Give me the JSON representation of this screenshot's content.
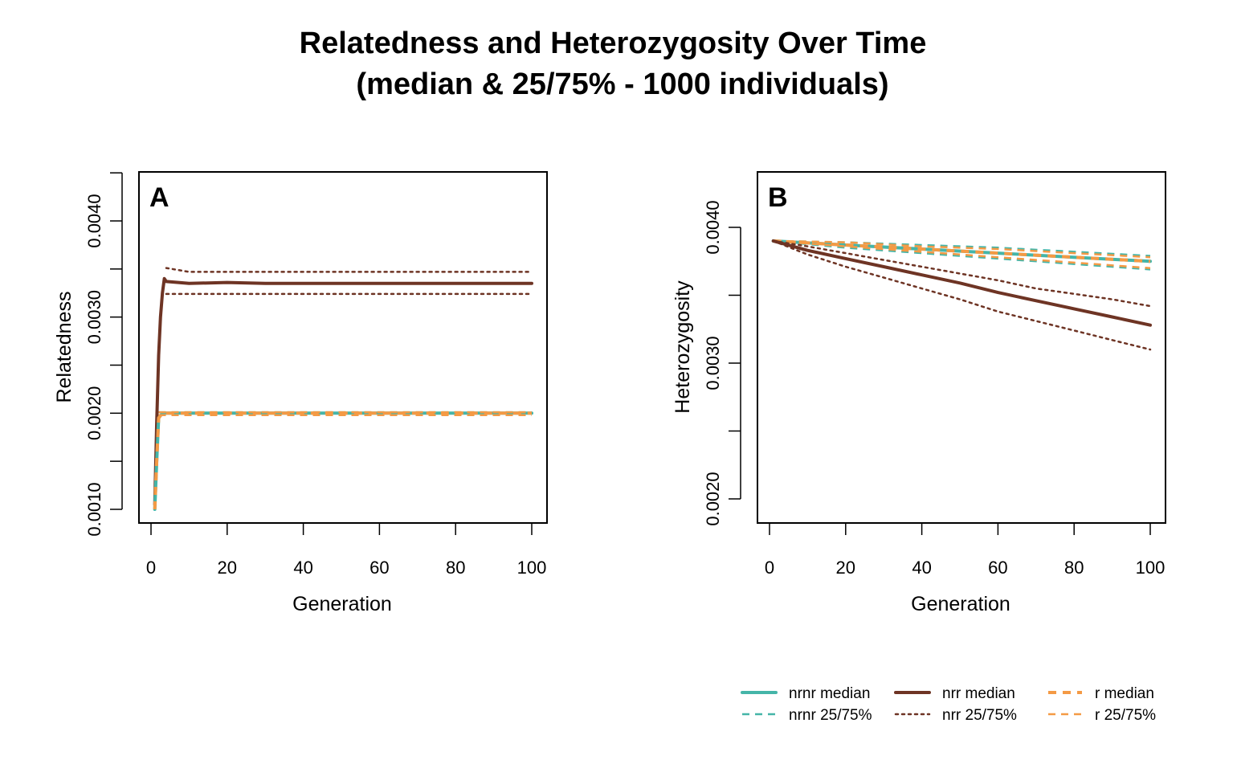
{
  "title_line1": "Relatedness and Heterozygosity Over Time",
  "title_line2": "(median & 25/75% - 1000 individuals)",
  "colors": {
    "nrnr": "#45B5A8",
    "nrr": "#6E3424",
    "r": "#F49A45"
  },
  "legend": [
    {
      "label": "nrnr median",
      "color_key": "nrnr",
      "style": "solid"
    },
    {
      "label": "nrnr 25/75%",
      "color_key": "nrnr",
      "style": "dashed"
    },
    {
      "label": "nrr median",
      "color_key": "nrr",
      "style": "solid"
    },
    {
      "label": "nrr 25/75%",
      "color_key": "nrr",
      "style": "dotted"
    },
    {
      "label": "r median",
      "color_key": "r",
      "style": "dashed-thick"
    },
    {
      "label": "r 25/75%",
      "color_key": "r",
      "style": "dashed"
    }
  ],
  "chart_data": [
    {
      "type": "line",
      "panel": "A",
      "xlabel": "Generation",
      "ylabel": "Relatedness",
      "xlim": [
        0,
        100
      ],
      "ylim": [
        0.0009,
        0.0045
      ],
      "xticks": [
        "0",
        "20",
        "40",
        "60",
        "80",
        "100"
      ],
      "yticks": [
        "0.0010",
        "0.0020",
        "0.0030",
        "0.0040"
      ],
      "series": [
        {
          "name": "nrr median",
          "color_key": "nrr",
          "style": "solid",
          "x": [
            1,
            1.5,
            2,
            2.5,
            3,
            3.5,
            4,
            10,
            20,
            30,
            40,
            50,
            60,
            70,
            80,
            90,
            100
          ],
          "y": [
            0.00105,
            0.0019,
            0.0026,
            0.003,
            0.00325,
            0.0034,
            0.00337,
            0.00335,
            0.00336,
            0.00335,
            0.00335,
            0.00335,
            0.00335,
            0.00335,
            0.00335,
            0.00335,
            0.00335
          ]
        },
        {
          "name": "nrr 25/75%",
          "color_key": "nrr",
          "style": "dotted",
          "x": [
            4,
            10,
            20,
            30,
            40,
            50,
            60,
            70,
            80,
            90,
            100
          ],
          "y": [
            0.00351,
            0.00347,
            0.00347,
            0.00347,
            0.00347,
            0.00347,
            0.00347,
            0.00347,
            0.00347,
            0.00347,
            0.00347
          ]
        },
        {
          "name": "nrr 25/75%",
          "color_key": "nrr",
          "style": "dotted",
          "x": [
            4,
            10,
            20,
            30,
            40,
            50,
            60,
            70,
            80,
            90,
            100
          ],
          "y": [
            0.00324,
            0.00324,
            0.00324,
            0.00324,
            0.00324,
            0.00324,
            0.00324,
            0.00324,
            0.00324,
            0.00324,
            0.00324
          ]
        },
        {
          "name": "nrnr median",
          "color_key": "nrnr",
          "style": "solid",
          "x": [
            1,
            1.5,
            2,
            3,
            10,
            20,
            30,
            40,
            50,
            60,
            70,
            80,
            90,
            100
          ],
          "y": [
            0.001,
            0.0015,
            0.00195,
            0.002,
            0.002,
            0.002,
            0.002,
            0.002,
            0.002,
            0.002,
            0.002,
            0.002,
            0.002,
            0.002
          ]
        },
        {
          "name": "nrnr 25/75%",
          "color_key": "nrnr",
          "style": "dashed",
          "x": [
            2,
            10,
            20,
            30,
            40,
            50,
            60,
            70,
            80,
            90,
            100
          ],
          "y": [
            0.00201,
            0.00201,
            0.00201,
            0.00201,
            0.00201,
            0.00201,
            0.00201,
            0.00201,
            0.00201,
            0.00201,
            0.00201
          ]
        },
        {
          "name": "nrnr 25/75%",
          "color_key": "nrnr",
          "style": "dashed",
          "x": [
            2,
            10,
            20,
            30,
            40,
            50,
            60,
            70,
            80,
            90,
            100
          ],
          "y": [
            0.00198,
            0.00198,
            0.00198,
            0.00198,
            0.00198,
            0.00198,
            0.00198,
            0.00198,
            0.00198,
            0.00198,
            0.00198
          ]
        },
        {
          "name": "r median",
          "color_key": "r",
          "style": "dashed-thick",
          "x": [
            1,
            1.5,
            2,
            3,
            10,
            20,
            30,
            40,
            50,
            60,
            70,
            80,
            90,
            100
          ],
          "y": [
            0.001,
            0.0015,
            0.00195,
            0.002,
            0.002,
            0.002,
            0.002,
            0.002,
            0.002,
            0.002,
            0.002,
            0.002,
            0.002,
            0.002
          ]
        },
        {
          "name": "r 25/75%",
          "color_key": "r",
          "style": "dashed",
          "x": [
            2,
            10,
            20,
            30,
            40,
            50,
            60,
            70,
            80,
            90,
            100
          ],
          "y": [
            0.00201,
            0.00201,
            0.00201,
            0.00201,
            0.00201,
            0.00201,
            0.00201,
            0.00201,
            0.00201,
            0.00201,
            0.00201
          ]
        },
        {
          "name": "r 25/75%",
          "color_key": "r",
          "style": "dashed",
          "x": [
            2,
            10,
            20,
            30,
            40,
            50,
            60,
            70,
            80,
            90,
            100
          ],
          "y": [
            0.00198,
            0.00198,
            0.00198,
            0.00198,
            0.00198,
            0.00198,
            0.00198,
            0.00198,
            0.00198,
            0.00198,
            0.00198
          ]
        }
      ]
    },
    {
      "type": "line",
      "panel": "B",
      "xlabel": "Generation",
      "ylabel": "Heterozygosity",
      "xlim": [
        0,
        100
      ],
      "ylim": [
        0.0018,
        0.0044
      ],
      "xticks": [
        "0",
        "20",
        "40",
        "60",
        "80",
        "100"
      ],
      "yticks": [
        "0.0020",
        "0.0030",
        "0.0040"
      ],
      "series": [
        {
          "name": "nrnr median",
          "color_key": "nrnr",
          "style": "solid",
          "x": [
            1,
            20,
            40,
            60,
            80,
            100
          ],
          "y": [
            0.0039,
            0.00387,
            0.00384,
            0.00381,
            0.00378,
            0.00375
          ]
        },
        {
          "name": "nrnr 25/75%",
          "color_key": "nrnr",
          "style": "dashed",
          "x": [
            1,
            20,
            40,
            60,
            80,
            100
          ],
          "y": [
            0.0039,
            0.00389,
            0.00387,
            0.00385,
            0.00382,
            0.00379
          ]
        },
        {
          "name": "nrnr 25/75%",
          "color_key": "nrnr",
          "style": "dashed",
          "x": [
            1,
            20,
            40,
            60,
            80,
            100
          ],
          "y": [
            0.0039,
            0.00385,
            0.00381,
            0.00377,
            0.00373,
            0.00369
          ]
        },
        {
          "name": "r median",
          "color_key": "r",
          "style": "dashed-thick",
          "x": [
            1,
            20,
            40,
            60,
            80,
            100
          ],
          "y": [
            0.0039,
            0.00387,
            0.00384,
            0.00381,
            0.00378,
            0.00375
          ]
        },
        {
          "name": "r 25/75%",
          "color_key": "r",
          "style": "dashed",
          "x": [
            1,
            20,
            40,
            60,
            80,
            100
          ],
          "y": [
            0.0039,
            0.00389,
            0.00386,
            0.00384,
            0.00381,
            0.00378
          ]
        },
        {
          "name": "r 25/75%",
          "color_key": "r",
          "style": "dashed",
          "x": [
            1,
            20,
            40,
            60,
            80,
            100
          ],
          "y": [
            0.0039,
            0.00386,
            0.00382,
            0.00378,
            0.00374,
            0.0037
          ]
        },
        {
          "name": "nrr median",
          "color_key": "nrr",
          "style": "solid",
          "x": [
            1,
            10,
            20,
            30,
            40,
            50,
            60,
            70,
            80,
            90,
            100
          ],
          "y": [
            0.0039,
            0.00383,
            0.00377,
            0.00371,
            0.00365,
            0.00359,
            0.00352,
            0.00346,
            0.0034,
            0.00334,
            0.00328
          ]
        },
        {
          "name": "nrr 25/75%",
          "color_key": "nrr",
          "style": "dotted",
          "x": [
            1,
            10,
            20,
            30,
            40,
            50,
            60,
            70,
            80,
            90,
            100
          ],
          "y": [
            0.0039,
            0.00386,
            0.00381,
            0.00376,
            0.00371,
            0.00366,
            0.00361,
            0.00355,
            0.00351,
            0.00347,
            0.00342
          ]
        },
        {
          "name": "nrr 25/75%",
          "color_key": "nrr",
          "style": "dotted",
          "x": [
            1,
            10,
            20,
            30,
            40,
            50,
            60,
            70,
            80,
            90,
            100
          ],
          "y": [
            0.0039,
            0.0038,
            0.00371,
            0.00363,
            0.00355,
            0.00347,
            0.00338,
            0.00331,
            0.00324,
            0.00317,
            0.0031
          ]
        }
      ]
    }
  ]
}
